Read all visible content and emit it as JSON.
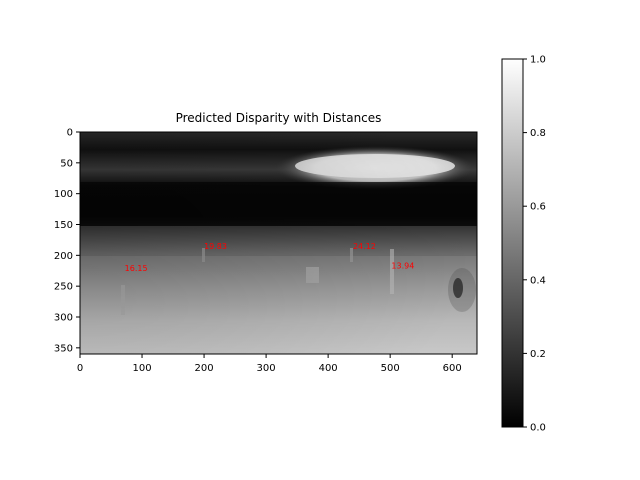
{
  "chart_data": {
    "type": "heatmap",
    "title": "Predicted Disparity with Distances",
    "xlabel": "",
    "ylabel": "",
    "xlim": [
      0,
      640
    ],
    "ylim": [
      360,
      0
    ],
    "x_ticks": [
      0,
      100,
      200,
      300,
      400,
      500,
      600
    ],
    "y_ticks": [
      0,
      50,
      100,
      150,
      200,
      250,
      300,
      350
    ],
    "colormap": "gray",
    "colorbar": {
      "range": [
        0.0,
        1.0
      ],
      "ticks": [
        "0.0",
        "0.2",
        "0.4",
        "0.6",
        "0.8",
        "1.0"
      ]
    },
    "annotations": [
      {
        "text": "16.15",
        "x": 72,
        "y": 225
      },
      {
        "text": "19.83",
        "x": 200,
        "y": 190
      },
      {
        "text": "24.12",
        "x": 440,
        "y": 190
      },
      {
        "text": "13.94",
        "x": 502,
        "y": 221
      }
    ],
    "annotation_color": "#ff0000"
  }
}
